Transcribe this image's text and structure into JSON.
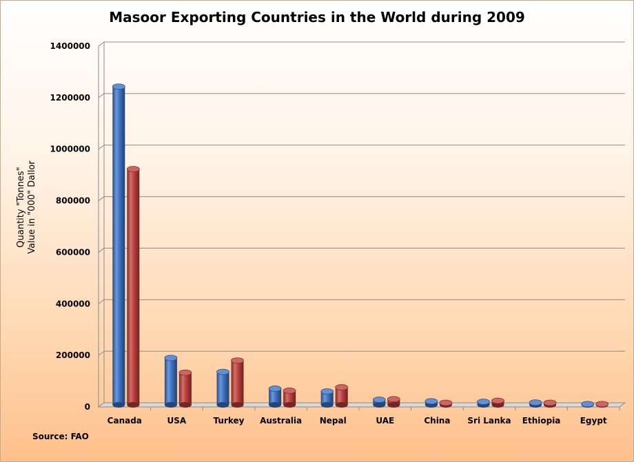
{
  "chart_data": {
    "type": "bar",
    "title": "Masoor Exporting Countries in the World during 2009",
    "ylabel_lines": [
      "Quantity \"Tonnes\"",
      "Value in \"000\" Dallor"
    ],
    "source": "Source: FAO",
    "categories": [
      "Canada",
      "USA",
      "Turkey",
      "Australia",
      "Nepal",
      "UAE",
      "China",
      "Sri Lanka",
      "Ethiopia",
      "Egypt"
    ],
    "series": [
      {
        "values": [
          1235000,
          182000,
          128000,
          63000,
          52000,
          20000,
          14000,
          12000,
          9000,
          3000
        ],
        "color": "#3d74c8"
      },
      {
        "values": [
          915000,
          125000,
          172000,
          55000,
          68000,
          22000,
          8000,
          16000,
          8000,
          3000
        ],
        "color": "#c0403c"
      }
    ],
    "ylim": [
      0,
      1400000
    ],
    "yticks": [
      "0",
      "200000",
      "400000",
      "600000",
      "800000",
      "1000000",
      "1200000",
      "1400000"
    ],
    "grid": true
  }
}
